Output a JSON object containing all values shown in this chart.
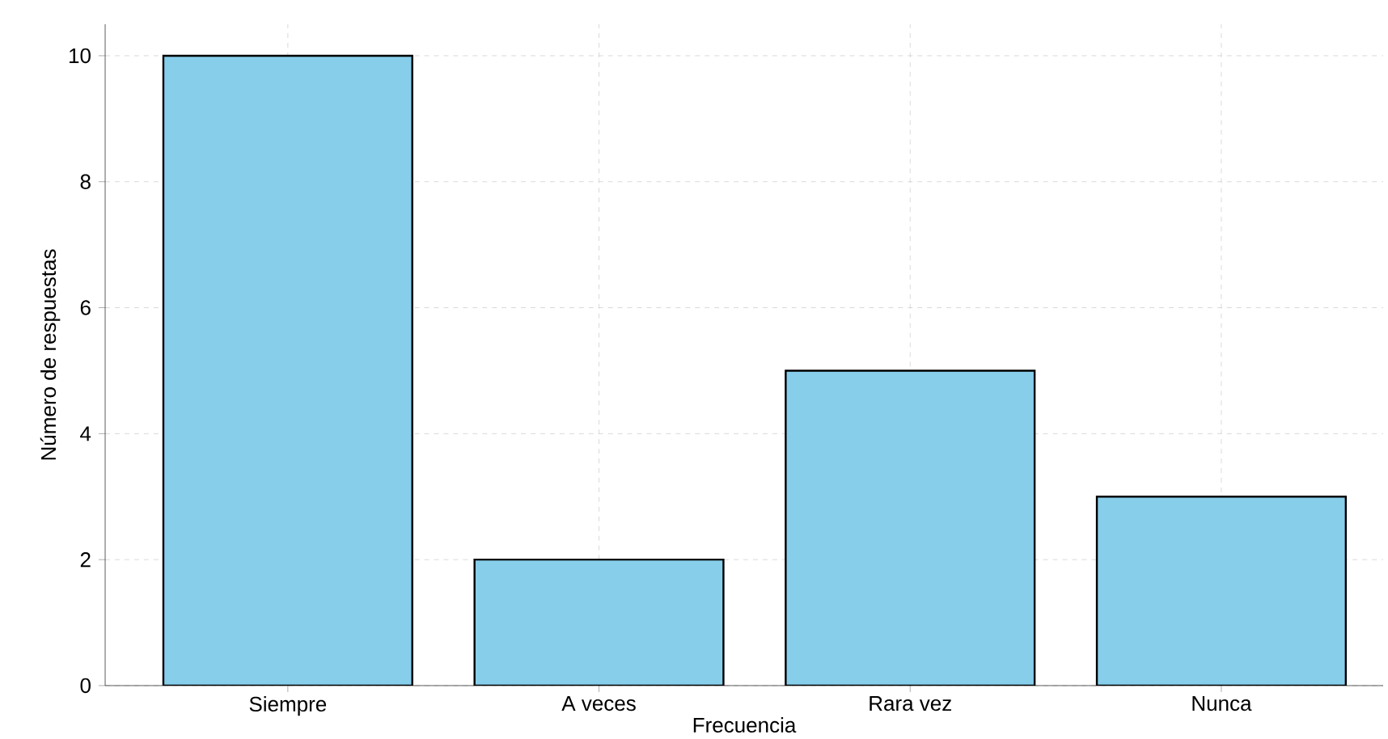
{
  "chart_data": {
    "type": "bar",
    "xlabel": "Frecuencia",
    "ylabel": "Número de respuestas",
    "categories": [
      "Siempre",
      "A veces",
      "Rara vez",
      "Nunca"
    ],
    "values": [
      10,
      2,
      5,
      3
    ],
    "color": "#87ceeb",
    "ylim": [
      0,
      10.5
    ],
    "yticks": [
      0,
      2,
      4,
      6,
      8,
      10
    ],
    "grid": true
  }
}
